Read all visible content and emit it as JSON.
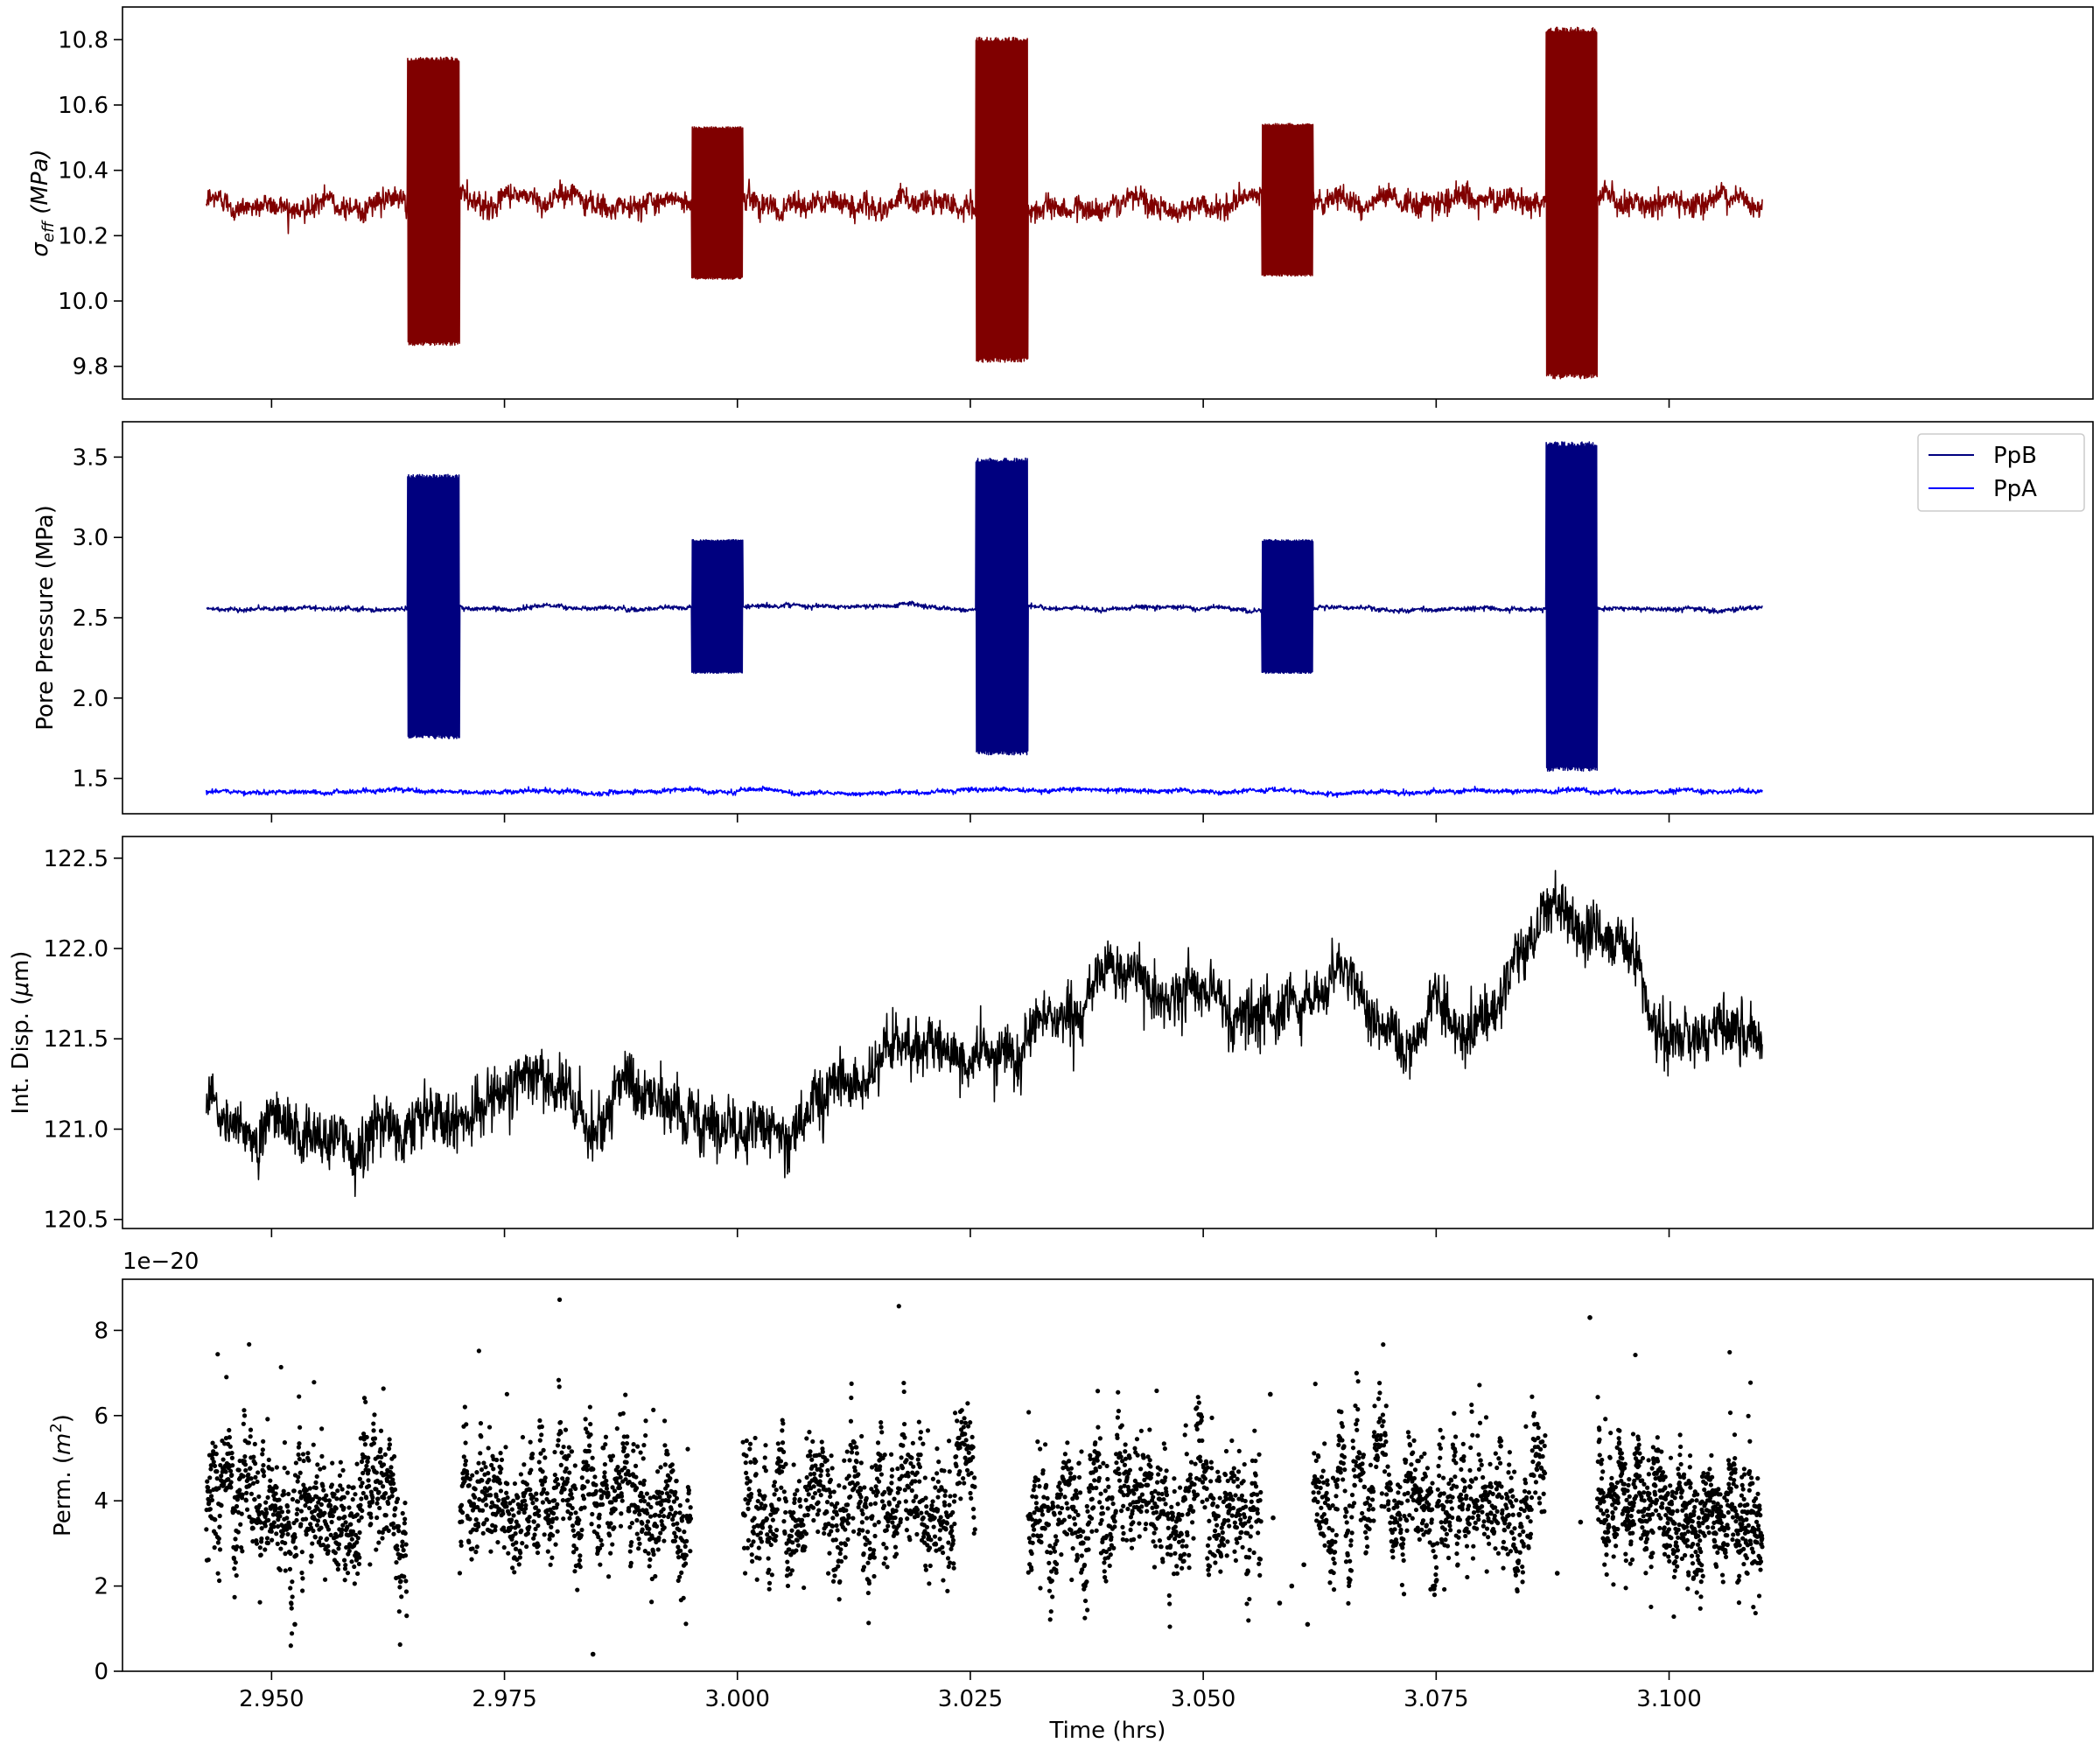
{
  "colors": {
    "sigma": "#800000",
    "ppb": "#00007f",
    "ppa": "#0000ff",
    "disp": "#000000",
    "perm": "#000000"
  },
  "chart_data": [
    {
      "type": "line",
      "ylabel": "σ_eff (MPa)",
      "ylabel_main": "σ",
      "ylabel_sub": "eff",
      "ylabel_rest": " (MPa)",
      "xlim": [
        2.934,
        3.1455
      ],
      "ylim": [
        9.7,
        10.9
      ],
      "yticks": [
        "9.8",
        "10.0",
        "10.2",
        "10.4",
        "10.6",
        "10.8"
      ],
      "yticks_values": [
        9.8,
        10.0,
        10.2,
        10.4,
        10.6,
        10.8
      ],
      "xticks_values": [
        2.95,
        2.975,
        3.0,
        3.025,
        3.05,
        3.075,
        3.1
      ],
      "series": [
        {
          "baseline": 10.3,
          "noise": 0.03,
          "x_range": [
            2.943,
            3.11
          ],
          "bursts": [
            {
              "x": [
                2.9646,
                2.9702
              ],
              "min": 9.87,
              "max": 10.74
            },
            {
              "x": [
                2.9951,
                3.0006
              ],
              "min": 10.07,
              "max": 10.53
            },
            {
              "x": [
                3.0256,
                3.0312
              ],
              "min": 9.82,
              "max": 10.8
            },
            {
              "x": [
                3.0563,
                3.0618
              ],
              "min": 10.08,
              "max": 10.54
            },
            {
              "x": [
                3.0868,
                3.0923
              ],
              "min": 9.77,
              "max": 10.83
            }
          ]
        }
      ]
    },
    {
      "type": "line",
      "ylabel": "Pore Pressure (MPa)",
      "xlim": [
        2.934,
        3.1455
      ],
      "ylim": [
        1.28,
        3.72
      ],
      "yticks": [
        "1.5",
        "2.0",
        "2.5",
        "3.0",
        "3.5"
      ],
      "yticks_values": [
        1.5,
        2.0,
        2.5,
        3.0,
        3.5
      ],
      "xticks_values": [
        2.95,
        2.975,
        3.0,
        3.025,
        3.05,
        3.075,
        3.1
      ],
      "legend": "top-right",
      "series": [
        {
          "name": "PpB",
          "baseline": 2.56,
          "noise": 0.012,
          "x_range": [
            2.943,
            3.11
          ],
          "bursts": [
            {
              "x": [
                2.9646,
                2.9702
              ],
              "min": 1.76,
              "max": 3.38
            },
            {
              "x": [
                2.9951,
                3.0006
              ],
              "min": 2.16,
              "max": 2.98
            },
            {
              "x": [
                3.0256,
                3.0312
              ],
              "min": 1.66,
              "max": 3.48
            },
            {
              "x": [
                3.0563,
                3.0618
              ],
              "min": 2.16,
              "max": 2.98
            },
            {
              "x": [
                3.0868,
                3.0923
              ],
              "min": 1.56,
              "max": 3.58
            }
          ]
        },
        {
          "name": "PpA",
          "baseline": 1.42,
          "noise": 0.012,
          "x_range": [
            2.943,
            3.11
          ],
          "bursts": []
        }
      ]
    },
    {
      "type": "line",
      "ylabel": "Int. Disp. (μm)",
      "ylabel_main": "Int. Disp. (",
      "ylabel_mu": "μ",
      "ylabel_rest": "m)",
      "xlim": [
        2.934,
        3.1455
      ],
      "ylim": [
        120.45,
        122.62
      ],
      "yticks": [
        "120.5",
        "121.0",
        "121.5",
        "122.0",
        "122.5"
      ],
      "yticks_values": [
        120.5,
        121.0,
        121.5,
        122.0,
        122.5
      ],
      "xticks_values": [
        2.95,
        2.975,
        3.0,
        3.025,
        3.05,
        3.075,
        3.1
      ],
      "series": [
        {
          "x": [
            2.943,
            2.946,
            2.949,
            2.952,
            2.955,
            2.958,
            2.961,
            2.964,
            2.967,
            2.97,
            2.973,
            2.976,
            2.979,
            2.982,
            2.985,
            2.988,
            2.991,
            2.994,
            2.997,
            3.0,
            3.003,
            3.006,
            3.009,
            3.012,
            3.015,
            3.018,
            3.021,
            3.024,
            3.027,
            3.03,
            3.033,
            3.036,
            3.039,
            3.042,
            3.045,
            3.048,
            3.051,
            3.054,
            3.057,
            3.06,
            3.063,
            3.066,
            3.069,
            3.072,
            3.075,
            3.078,
            3.081,
            3.084,
            3.087,
            3.09,
            3.093,
            3.096,
            3.099,
            3.102,
            3.105,
            3.108,
            3.11
          ],
          "values": [
            121.2,
            121.05,
            120.95,
            120.92,
            120.95,
            121.0,
            120.97,
            121.0,
            121.1,
            121.05,
            121.15,
            121.25,
            121.2,
            121.15,
            120.95,
            121.25,
            121.2,
            121.15,
            121.1,
            121.0,
            121.05,
            121.1,
            121.2,
            121.3,
            121.4,
            121.35,
            121.45,
            121.35,
            121.3,
            121.4,
            121.55,
            121.6,
            121.85,
            121.85,
            121.75,
            121.85,
            121.8,
            121.65,
            121.6,
            121.75,
            121.8,
            121.85,
            121.55,
            121.45,
            121.7,
            121.55,
            121.7,
            121.95,
            122.2,
            122.15,
            122.15,
            122.05,
            121.55,
            121.6,
            121.55,
            121.55,
            121.6
          ],
          "noise": 0.1
        }
      ]
    },
    {
      "type": "scatter",
      "ylabel": "Perm. (m²)",
      "ylabel_main": "Perm. (",
      "ylabel_italic": "m",
      "ylabel_sup": "2",
      "ylabel_rest": ")",
      "offset_text": "1e−20",
      "xlabel": "Time (hrs)",
      "xlim": [
        2.934,
        3.1455
      ],
      "ylim": [
        0,
        9.2
      ],
      "yticks": [
        "0",
        "2",
        "4",
        "6",
        "8"
      ],
      "yticks_values": [
        0,
        2,
        4,
        6,
        8
      ],
      "xticks": [
        "2.950",
        "2.975",
        "3.000",
        "3.025",
        "3.050",
        "3.075",
        "3.100"
      ],
      "xticks_values": [
        2.95,
        2.975,
        3.0,
        3.025,
        3.05,
        3.075,
        3.1
      ],
      "series": [
        {
          "segments": [
            {
              "x": [
                2.943,
                2.9645
              ],
              "mean": 3.8,
              "spread": 1.1
            },
            {
              "x": [
                2.9702,
                2.995
              ],
              "mean": 3.9,
              "spread": 1.1
            },
            {
              "x": [
                3.0006,
                3.0255
              ],
              "mean": 3.9,
              "spread": 1.1
            },
            {
              "x": [
                3.0312,
                3.0562
              ],
              "mean": 3.8,
              "spread": 1.2
            },
            {
              "x": [
                3.0618,
                3.0867
              ],
              "mean": 3.7,
              "spread": 1.1
            },
            {
              "x": [
                3.0923,
                3.11
              ],
              "mean": 3.8,
              "spread": 1.1
            }
          ],
          "outliers": [
            [
              2.9845,
              0.4
            ],
            [
              3.0575,
              3.6
            ],
            [
              3.0582,
              1.6
            ],
            [
              3.0595,
              2.0
            ],
            [
              3.0608,
              2.5
            ],
            [
              3.0612,
              1.1
            ],
            [
              3.0915,
              8.3
            ],
            [
              3.0905,
              3.5
            ],
            [
              3.088,
              2.3
            ],
            [
              2.9525,
              1.1
            ],
            [
              3.0572,
              6.5
            ]
          ]
        }
      ]
    }
  ],
  "legend": {
    "items": [
      "PpB",
      "PpA"
    ]
  }
}
